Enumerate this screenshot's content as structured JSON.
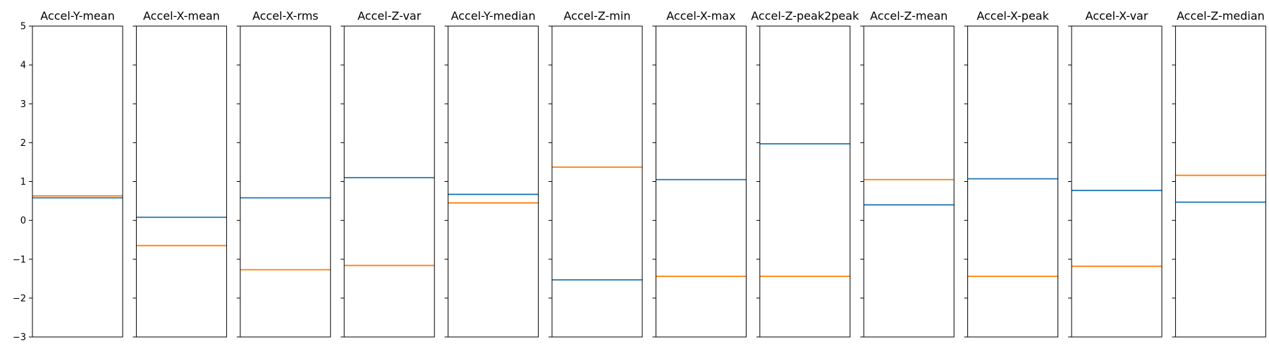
{
  "chart_data": {
    "type": "line",
    "ylim": [
      -3,
      5
    ],
    "yticks": [
      -3,
      -2,
      -1,
      0,
      1,
      2,
      3,
      4,
      5
    ],
    "ytick_labels": [
      "−3",
      "−2",
      "−1",
      "0",
      "1",
      "2",
      "3",
      "4",
      "5"
    ],
    "grid": false,
    "series_colors": [
      "#1f77b4",
      "#ff7f0e"
    ],
    "panels": [
      {
        "title": "Accel-Y-mean",
        "series": [
          {
            "values": [
              0.58
            ]
          },
          {
            "values": [
              0.63
            ]
          }
        ]
      },
      {
        "title": "Accel-X-mean",
        "series": [
          {
            "values": [
              0.08
            ]
          },
          {
            "values": [
              -0.65
            ]
          }
        ]
      },
      {
        "title": "Accel-X-rms",
        "series": [
          {
            "values": [
              0.58
            ]
          },
          {
            "values": [
              -1.27
            ]
          }
        ]
      },
      {
        "title": "Accel-Z-var",
        "series": [
          {
            "values": [
              1.1
            ]
          },
          {
            "values": [
              -1.16
            ]
          }
        ]
      },
      {
        "title": "Accel-Y-median",
        "series": [
          {
            "values": [
              0.67
            ]
          },
          {
            "values": [
              0.45
            ]
          }
        ]
      },
      {
        "title": "Accel-Z-min",
        "series": [
          {
            "values": [
              -1.53
            ]
          },
          {
            "values": [
              1.37
            ]
          }
        ]
      },
      {
        "title": "Accel-X-max",
        "series": [
          {
            "values": [
              1.05
            ]
          },
          {
            "values": [
              -1.44
            ]
          }
        ]
      },
      {
        "title": "Accel-Z-peak2peak",
        "series": [
          {
            "values": [
              1.97
            ]
          },
          {
            "values": [
              -1.44
            ]
          }
        ]
      },
      {
        "title": "Accel-Z-mean",
        "series": [
          {
            "values": [
              0.4
            ]
          },
          {
            "values": [
              1.05
            ]
          }
        ]
      },
      {
        "title": "Accel-X-peak",
        "series": [
          {
            "values": [
              1.07
            ]
          },
          {
            "values": [
              -1.44
            ]
          }
        ]
      },
      {
        "title": "Accel-X-var",
        "series": [
          {
            "values": [
              0.77
            ]
          },
          {
            "values": [
              -1.18
            ]
          }
        ]
      },
      {
        "title": "Accel-Z-median",
        "series": [
          {
            "values": [
              0.47
            ]
          },
          {
            "values": [
              1.16
            ]
          }
        ]
      }
    ]
  }
}
